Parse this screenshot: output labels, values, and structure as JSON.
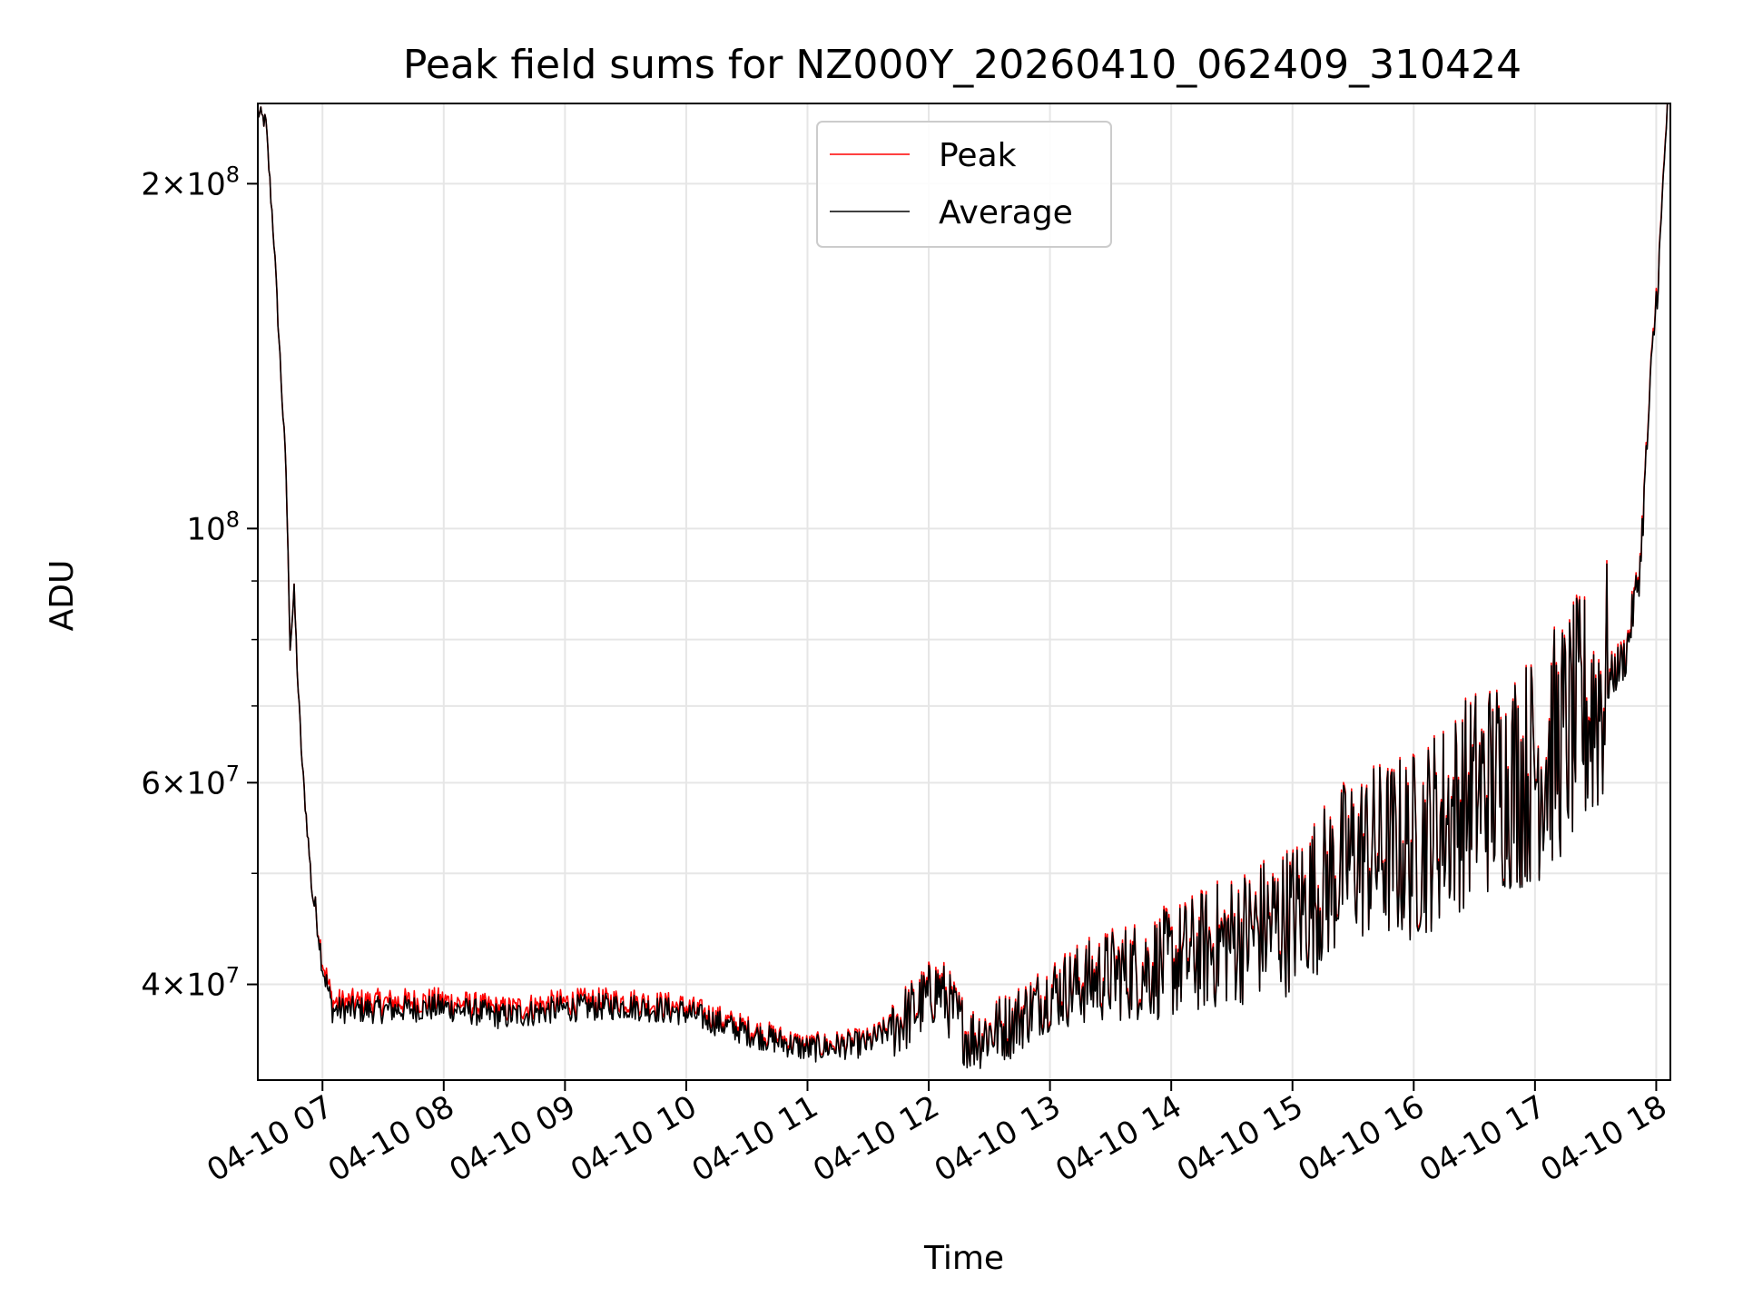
{
  "chart_data": {
    "type": "line",
    "title": "Peak field sums for NZ000Y_20260410_062409_310424",
    "xlabel": "Time",
    "ylabel": "ADU",
    "y_scale": "log",
    "grid": true,
    "legend_position": "top-center",
    "x_tick_labels": [
      "04-10 07",
      "04-10 08",
      "04-10 09",
      "04-10 10",
      "04-10 11",
      "04-10 12",
      "04-10 13",
      "04-10 14",
      "04-10 15",
      "04-10 16",
      "04-10 17",
      "04-10 18"
    ],
    "xlim": [
      "2026-04-10T06:28",
      "2026-04-10T18:07"
    ],
    "ylim": [
      33000000,
      235000000
    ],
    "y_major_ticks": [
      {
        "value": 40000000,
        "base": "4",
        "exp": "7"
      },
      {
        "value": 60000000,
        "base": "6",
        "exp": "7"
      },
      {
        "value": 100000000,
        "base": "",
        "exp": "8"
      },
      {
        "value": 200000000,
        "base": "2",
        "exp": "8"
      }
    ],
    "series": [
      {
        "name": "Peak",
        "color": "#ff0000",
        "anchors": [
          [
            "2026-04-10T06:28",
            231000000
          ],
          [
            "2026-04-10T06:32",
            226000000
          ],
          [
            "2026-04-10T06:36",
            178000000
          ],
          [
            "2026-04-10T06:40",
            130000000
          ],
          [
            "2026-04-10T06:42",
            112000000
          ],
          [
            "2026-04-10T06:44",
            79000000
          ],
          [
            "2026-04-10T06:46",
            88000000
          ],
          [
            "2026-04-10T06:48",
            72000000
          ],
          [
            "2026-04-10T06:50",
            62000000
          ],
          [
            "2026-04-10T06:52",
            56000000
          ],
          [
            "2026-04-10T06:55",
            48000000
          ],
          [
            "2026-04-10T06:57",
            46000000
          ],
          [
            "2026-04-10T07:00",
            42000000
          ],
          [
            "2026-04-10T07:05",
            38600000
          ],
          [
            "2026-04-10T07:30",
            38600000
          ],
          [
            "2026-04-10T08:00",
            38700000
          ],
          [
            "2026-04-10T08:30",
            38000000
          ],
          [
            "2026-04-10T09:00",
            38600000
          ],
          [
            "2026-04-10T09:30",
            38700000
          ],
          [
            "2026-04-10T10:00",
            38200000
          ],
          [
            "2026-04-10T10:30",
            36600000
          ],
          [
            "2026-04-10T11:00",
            35300000
          ],
          [
            "2026-04-10T11:30",
            35700000
          ],
          [
            "2026-04-10T11:50",
            37700000
          ],
          [
            "2026-04-10T12:05",
            40000000
          ],
          [
            "2026-04-10T12:20",
            36000000
          ],
          [
            "2026-04-10T12:40",
            37000000
          ],
          [
            "2026-04-10T13:00",
            39500000
          ],
          [
            "2026-04-10T13:30",
            41000000
          ],
          [
            "2026-04-10T14:00",
            42000000
          ],
          [
            "2026-04-10T14:30",
            44000000
          ],
          [
            "2026-04-10T15:00",
            46000000
          ],
          [
            "2026-04-10T15:30",
            52000000
          ],
          [
            "2026-04-10T16:00",
            53000000
          ],
          [
            "2026-04-10T16:30",
            59000000
          ],
          [
            "2026-04-10T17:00",
            62000000
          ],
          [
            "2026-04-10T17:30",
            71000000
          ],
          [
            "2026-04-10T17:45",
            78000000
          ],
          [
            "2026-04-10T17:52",
            93000000
          ],
          [
            "2026-04-10T17:58",
            142000000
          ],
          [
            "2026-04-10T18:02",
            178000000
          ],
          [
            "2026-04-10T18:05",
            228000000
          ],
          [
            "2026-04-10T18:07",
            232000000
          ]
        ]
      },
      {
        "name": "Average",
        "color": "#000000",
        "anchors": [
          [
            "2026-04-10T06:28",
            231000000
          ],
          [
            "2026-04-10T06:32",
            226000000
          ],
          [
            "2026-04-10T06:36",
            178000000
          ],
          [
            "2026-04-10T06:40",
            130000000
          ],
          [
            "2026-04-10T06:42",
            112000000
          ],
          [
            "2026-04-10T06:44",
            79000000
          ],
          [
            "2026-04-10T06:46",
            88000000
          ],
          [
            "2026-04-10T06:48",
            72000000
          ],
          [
            "2026-04-10T06:50",
            62000000
          ],
          [
            "2026-04-10T06:52",
            56000000
          ],
          [
            "2026-04-10T06:55",
            48000000
          ],
          [
            "2026-04-10T06:57",
            46000000
          ],
          [
            "2026-04-10T07:00",
            41500000
          ],
          [
            "2026-04-10T07:05",
            38000000
          ],
          [
            "2026-04-10T07:30",
            38000000
          ],
          [
            "2026-04-10T08:00",
            38200000
          ],
          [
            "2026-04-10T08:30",
            37500000
          ],
          [
            "2026-04-10T09:00",
            38100000
          ],
          [
            "2026-04-10T09:30",
            38300000
          ],
          [
            "2026-04-10T10:00",
            37800000
          ],
          [
            "2026-04-10T10:30",
            36300000
          ],
          [
            "2026-04-10T11:00",
            35100000
          ],
          [
            "2026-04-10T11:30",
            35500000
          ],
          [
            "2026-04-10T11:50",
            37500000
          ],
          [
            "2026-04-10T12:05",
            39700000
          ],
          [
            "2026-04-10T12:20",
            35800000
          ],
          [
            "2026-04-10T12:40",
            36800000
          ],
          [
            "2026-04-10T13:00",
            39200000
          ],
          [
            "2026-04-10T13:30",
            40700000
          ],
          [
            "2026-04-10T14:00",
            41700000
          ],
          [
            "2026-04-10T14:30",
            43700000
          ],
          [
            "2026-04-10T15:00",
            45700000
          ],
          [
            "2026-04-10T15:30",
            51700000
          ],
          [
            "2026-04-10T16:00",
            52700000
          ],
          [
            "2026-04-10T16:30",
            58700000
          ],
          [
            "2026-04-10T17:00",
            61700000
          ],
          [
            "2026-04-10T17:30",
            70500000
          ],
          [
            "2026-04-10T17:45",
            77500000
          ],
          [
            "2026-04-10T17:52",
            92500000
          ],
          [
            "2026-04-10T17:58",
            141000000
          ],
          [
            "2026-04-10T18:02",
            177000000
          ],
          [
            "2026-04-10T18:05",
            227000000
          ],
          [
            "2026-04-10T18:07",
            231000000
          ]
        ]
      }
    ]
  }
}
